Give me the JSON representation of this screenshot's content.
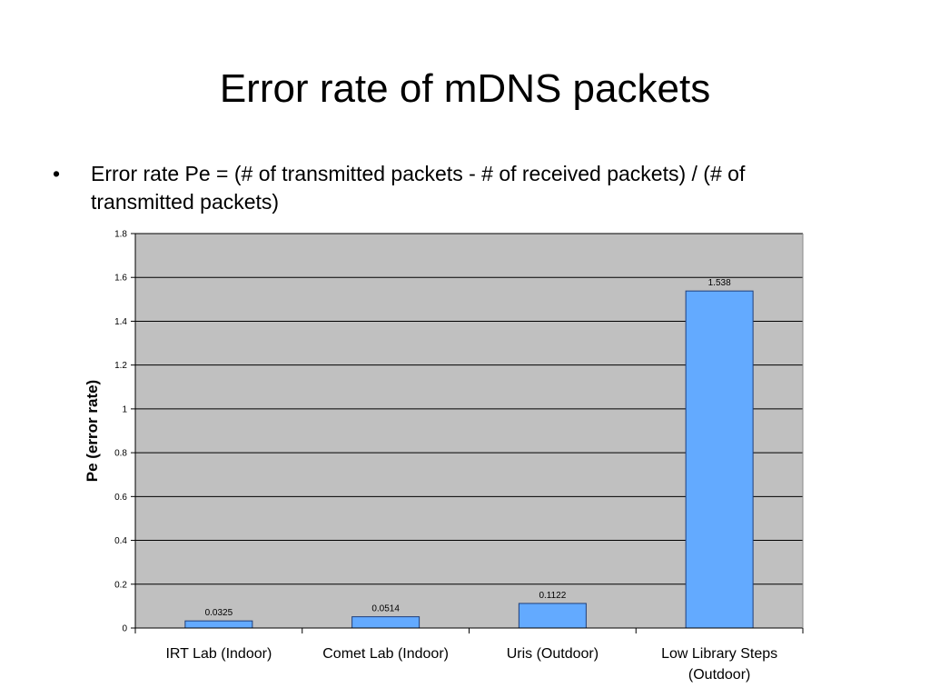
{
  "slide": {
    "title": "Error rate of mDNS packets",
    "bullet_mark": "•",
    "bullet_text": "Error rate Pe = (# of transmitted packets - # of received packets) / (# of transmitted packets)"
  },
  "colors": {
    "plot_background": "#c0c0c0",
    "bar_fill": "#63aaff",
    "bar_stroke": "#1f3f7a",
    "gridline": "#000000"
  },
  "chart_data": {
    "type": "bar",
    "categories": [
      [
        "IRT Lab (Indoor)"
      ],
      [
        "Comet Lab (Indoor)"
      ],
      [
        "Uris (Outdoor)"
      ],
      [
        "Low Library Steps",
        "(Outdoor)"
      ]
    ],
    "values": [
      0.0325,
      0.0514,
      0.1122,
      1.538
    ],
    "data_labels": [
      "0.0325",
      "0.0514",
      "0.1122",
      "1.538"
    ],
    "ylabel": "Pe (error rate)",
    "xlabel": "",
    "ylim": [
      0,
      1.8
    ],
    "y_ticks": [
      0,
      0.2,
      0.4,
      0.6,
      0.8,
      1,
      1.2,
      1.4,
      1.6,
      1.8
    ],
    "grid": true,
    "legend": "none"
  }
}
